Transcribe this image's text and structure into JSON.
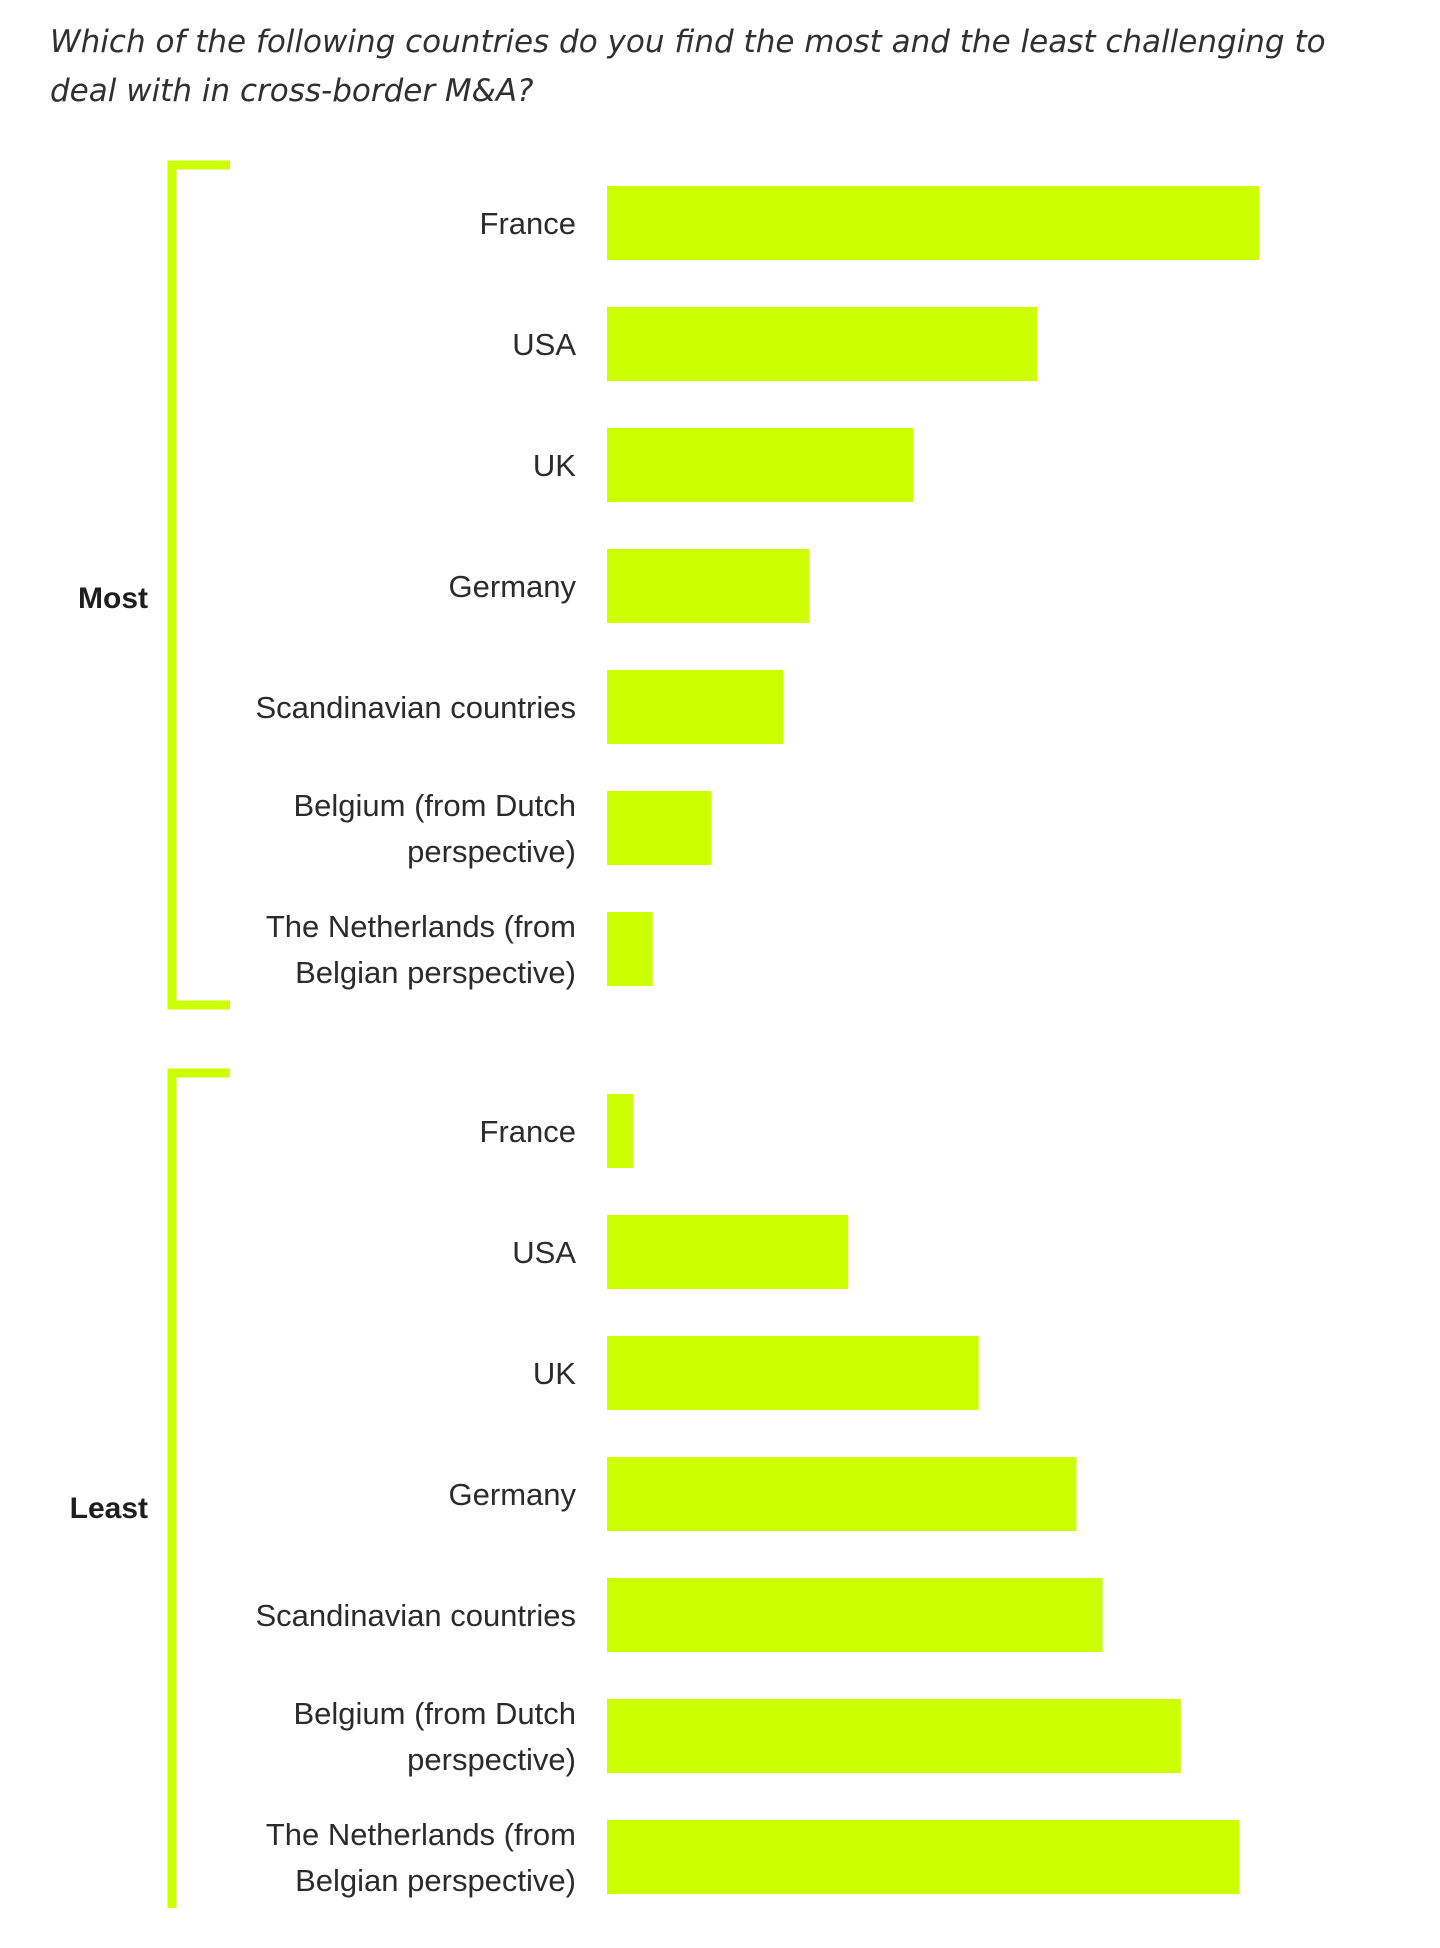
{
  "question": "Which of the following countries do you find the most and the least challenging to deal with in cross-border M&A?",
  "accent_color": "#ccff00",
  "chart_data": {
    "type": "bar",
    "orientation": "horizontal",
    "grid": false,
    "legend": "none",
    "xlim": [
      0,
      100
    ],
    "groups": [
      {
        "label": "Most",
        "categories": [
          "France",
          "USA",
          "UK",
          "Germany",
          "Scandinavian countries",
          "Belgium (from Dutch perspective)",
          "The Netherlands (from Belgian perspective)"
        ],
        "category_lines": [
          [
            "France"
          ],
          [
            "USA"
          ],
          [
            "UK"
          ],
          [
            "Germany"
          ],
          [
            "Scandinavian countries"
          ],
          [
            "Belgium (from Dutch",
            "perspective)"
          ],
          [
            "The Netherlands (from",
            "Belgian perspective)"
          ]
        ],
        "values": [
          100,
          66,
          47,
          31,
          27,
          16,
          7
        ]
      },
      {
        "label": "Least",
        "categories": [
          "France",
          "USA",
          "UK",
          "Germany",
          "Scandinavian countries",
          "Belgium (from Dutch perspective)",
          "The Netherlands (from Belgian perspective)"
        ],
        "category_lines": [
          [
            "France"
          ],
          [
            "USA"
          ],
          [
            "UK"
          ],
          [
            "Germany"
          ],
          [
            "Scandinavian countries"
          ],
          [
            "Belgium (from Dutch",
            "perspective)"
          ],
          [
            "The Netherlands (from",
            "Belgian perspective)"
          ]
        ],
        "values": [
          4,
          37,
          57,
          72,
          76,
          88,
          97
        ]
      }
    ]
  }
}
